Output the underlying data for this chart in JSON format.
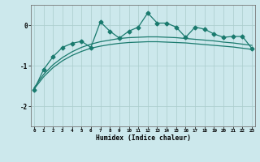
{
  "title": "",
  "xlabel": "Humidex (Indice chaleur)",
  "bg_color": "#cce8ec",
  "grid_color": "#aacccc",
  "line_color": "#1a7a6e",
  "x_ticks": [
    0,
    1,
    2,
    3,
    4,
    5,
    6,
    7,
    8,
    9,
    10,
    11,
    12,
    13,
    14,
    15,
    16,
    17,
    18,
    19,
    20,
    21,
    22,
    23
  ],
  "ylim": [
    -2.5,
    0.5
  ],
  "xlim": [
    -0.3,
    23.3
  ],
  "smooth1_y": [
    -1.58,
    -1.28,
    -1.05,
    -0.88,
    -0.75,
    -0.65,
    -0.57,
    -0.52,
    -0.48,
    -0.45,
    -0.43,
    -0.42,
    -0.41,
    -0.41,
    -0.42,
    -0.43,
    -0.44,
    -0.46,
    -0.48,
    -0.5,
    -0.52,
    -0.54,
    -0.57,
    -0.6
  ],
  "smooth2_y": [
    -1.55,
    -1.22,
    -0.98,
    -0.8,
    -0.66,
    -0.55,
    -0.47,
    -0.41,
    -0.37,
    -0.33,
    -0.31,
    -0.3,
    -0.29,
    -0.29,
    -0.3,
    -0.31,
    -0.33,
    -0.35,
    -0.37,
    -0.39,
    -0.42,
    -0.44,
    -0.47,
    -0.5
  ],
  "jagged_y": [
    -1.6,
    -1.1,
    -0.78,
    -0.55,
    -0.45,
    -0.4,
    -0.55,
    0.08,
    -0.15,
    -0.32,
    -0.15,
    -0.05,
    0.3,
    0.05,
    0.05,
    -0.05,
    -0.3,
    -0.05,
    -0.1,
    -0.22,
    -0.3,
    -0.28,
    -0.28,
    -0.58
  ],
  "yticks": [
    -2,
    -1,
    0
  ],
  "ytick_labels": [
    "-2",
    "-1",
    "0"
  ]
}
